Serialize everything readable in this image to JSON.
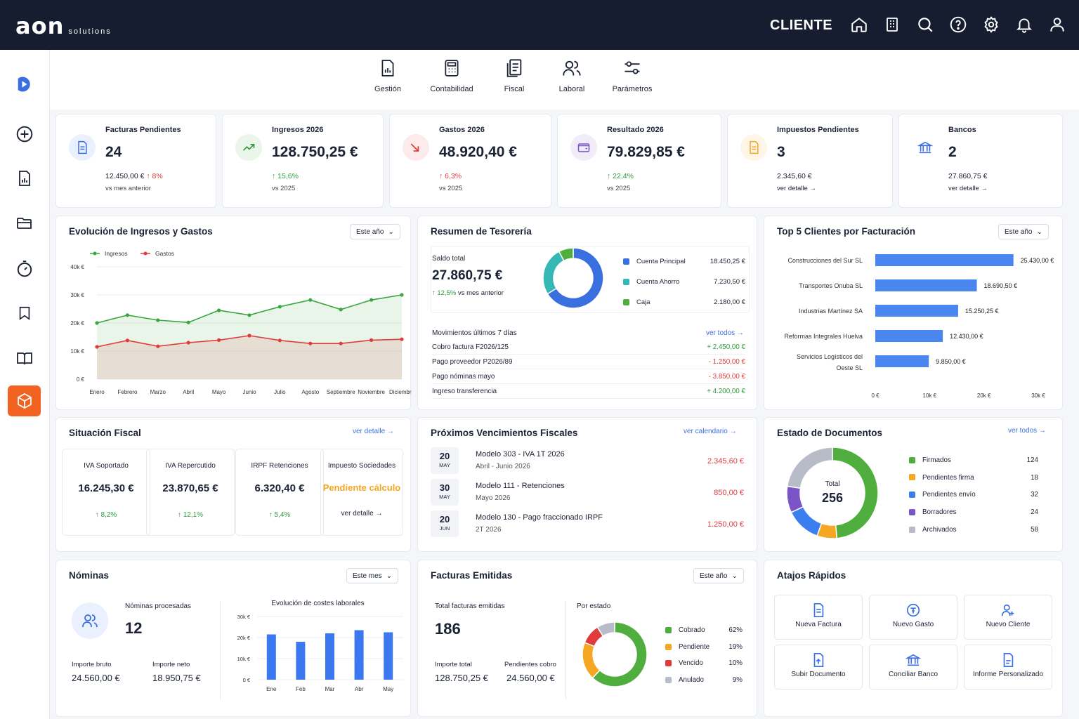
{
  "header": {
    "logo": "aon",
    "logo_sub": "solutions",
    "role": "CLIENTE",
    "icons": [
      "home-icon",
      "building-icon",
      "search-icon",
      "help-icon",
      "gear-icon",
      "bell-icon",
      "user-icon"
    ]
  },
  "sidebar": {
    "icons": [
      "brand-icon",
      "add-icon",
      "report-icon",
      "folder-icon",
      "timer-icon",
      "bookmark-icon",
      "book-icon",
      "box-icon"
    ]
  },
  "nav": [
    {
      "label": "Gestión",
      "icon": "report-icon"
    },
    {
      "label": "Contabilidad",
      "icon": "calculator-icon"
    },
    {
      "label": "Fiscal",
      "icon": "documents-icon"
    },
    {
      "label": "Laboral",
      "icon": "people-icon"
    },
    {
      "label": "Parámetros",
      "icon": "sliders-icon"
    }
  ],
  "kpis": [
    {
      "title": "Facturas Pendientes",
      "value": "24",
      "sub1": "12.450,00 €",
      "sub1b": "↑ 8%",
      "sub2": "vs mes anterior",
      "icon": "invoice-icon",
      "color": "#3a6fe0"
    },
    {
      "title": "Ingresos 2026",
      "value": "128.750,25 €",
      "sub1": "↑ 15,6%",
      "sub2": "vs 2025",
      "icon": "trend-up-icon",
      "color": "#2e9b3d"
    },
    {
      "title": "Gastos 2026",
      "value": "48.920,40 €",
      "sub1": "↑ 6,3%",
      "sub2": "vs 2025",
      "icon": "trend-down-icon",
      "color": "#e03c3c"
    },
    {
      "title": "Resultado 2026",
      "value": "79.829,85 €",
      "sub1": "↑ 22,4%",
      "sub2": "vs 2025",
      "icon": "wallet-icon",
      "color": "#7b55c7"
    },
    {
      "title": "Impuestos Pendientes",
      "value": "3",
      "sub1": "2.345,60 €",
      "sub2": "ver detalle →",
      "icon": "tax-doc-icon",
      "color": "#f5a623"
    },
    {
      "title": "Bancos",
      "value": "2",
      "sub1": "27.860,75 €",
      "sub2": "ver detalle →",
      "icon": "bank-icon",
      "color": "#3a6fe0"
    }
  ],
  "evolucion": {
    "title": "Evolución de Ingresos y Gastos",
    "dropdown": "Este año"
  },
  "chart_data": [
    {
      "type": "line",
      "title": "Evolución de Ingresos y Gastos",
      "categories": [
        "Enero",
        "Febrero",
        "Marzo",
        "Abril",
        "Mayo",
        "Junio",
        "Julio",
        "Agosto",
        "Septiembre",
        "Noviembre",
        "Diciembre"
      ],
      "yticks": [
        "0 €",
        "10k €",
        "20k €",
        "30k €",
        "40k €"
      ],
      "ylim": [
        0,
        40000
      ],
      "series": [
        {
          "name": "Ingresos",
          "color": "#3aa640",
          "values": [
            20000,
            22800,
            21000,
            20200,
            24500,
            22800,
            25800,
            28200,
            24800,
            28200,
            30000
          ]
        },
        {
          "name": "Gastos",
          "color": "#e03c3c",
          "values": [
            11500,
            13800,
            11700,
            13000,
            13900,
            15500,
            13800,
            12700,
            12700,
            13900,
            14200
          ]
        }
      ]
    },
    {
      "type": "bar",
      "title": "Top 5 Clientes por Facturación",
      "orientation": "horizontal",
      "categories": [
        "Construcciones del Sur SL",
        "Transportes Onuba SL",
        "Industrias Martínez SA",
        "Reformas Integrales Huelva",
        "Servicios Logísticos del Oeste SL"
      ],
      "values": [
        25430,
        18690.5,
        15250.25,
        12430,
        9850
      ],
      "labels": [
        "25.430,00 €",
        "18.690,50 €",
        "15.250,25 €",
        "12.430,00 €",
        "9.850,00 €"
      ],
      "xticks": [
        "0 €",
        "10k €",
        "20k €",
        "30k €"
      ],
      "xlim": [
        0,
        30000
      ]
    },
    {
      "type": "bar",
      "title": "Evolución de costes laborales",
      "categories": [
        "Ene",
        "Feb",
        "Mar",
        "Abr",
        "May"
      ],
      "values": [
        21500,
        18000,
        22000,
        23500,
        22500
      ],
      "yticks": [
        "0 €",
        "10k €",
        "20k €",
        "30k €"
      ],
      "ylim": [
        0,
        30000
      ]
    },
    {
      "type": "pie",
      "title": "Resumen de Tesorería",
      "values": [
        18450.25,
        7230.5,
        2180
      ]
    },
    {
      "type": "pie",
      "title": "Estado de Documentos",
      "values": [
        124,
        18,
        32,
        24,
        58
      ]
    },
    {
      "type": "pie",
      "title": "Por estado",
      "values": [
        62,
        19,
        10,
        9
      ]
    }
  ],
  "tesoreria": {
    "title": "Resumen de Tesorería",
    "saldo_label": "Saldo total",
    "saldo": "27.860,75 €",
    "growth": "↑ 12,5%",
    "growth_txt": "vs mes anterior",
    "accounts": [
      {
        "name": "Cuenta Principal",
        "value": "18.450,25 €",
        "color": "#3a6fe0"
      },
      {
        "name": "Cuenta Ahorro",
        "value": "7.230,50 €",
        "color": "#35b7b4"
      },
      {
        "name": "Caja",
        "value": "2.180,00 €",
        "color": "#4fae3e"
      }
    ],
    "mov_title": "Movimientos últimos 7 días",
    "mov_link": "ver todos →",
    "movs": [
      {
        "c": "Cobro factura F2026/125",
        "v": "+ 2.450,00 €",
        "pos": true
      },
      {
        "c": "Pago proveedor P2026/89",
        "v": "- 1.250,00 €",
        "pos": false
      },
      {
        "c": "Pago nóminas mayo",
        "v": "- 3.850,00 €",
        "pos": false
      },
      {
        "c": "Ingreso transferencia",
        "v": "+ 4.200,00 €",
        "pos": true
      }
    ]
  },
  "top5": {
    "title": "Top 5 Clientes por Facturación",
    "dropdown": "Este año"
  },
  "fiscal": {
    "title": "Situación Fiscal",
    "link": "ver detalle →",
    "boxes": [
      {
        "t": "IVA Soportado",
        "v": "16.245,30 €",
        "s": "↑ 8,2%"
      },
      {
        "t": "IVA Repercutido",
        "v": "23.870,65 €",
        "s": "↑ 12,1%"
      },
      {
        "t": "IRPF Retenciones",
        "v": "6.320,40 €",
        "s": "↑ 5,4%"
      },
      {
        "t": "Impuesto Sociedades",
        "v": "Pendiente cálculo",
        "s": "ver detalle →"
      }
    ]
  },
  "vencimientos": {
    "title": "Próximos Vencimientos Fiscales",
    "link": "ver calendario →",
    "items": [
      {
        "d": "20",
        "m": "MAY",
        "t": "Modelo 303 - IVA 1T 2026",
        "s": "Abril - Junio 2026",
        "v": "2.345,60 €"
      },
      {
        "d": "30",
        "m": "MAY",
        "t": "Modelo 111 - Retenciones",
        "s": "Mayo 2026",
        "v": "850,00 €"
      },
      {
        "d": "20",
        "m": "JUN",
        "t": "Modelo 130 - Pago fraccionado IRPF",
        "s": "2T 2026",
        "v": "1.250,00 €"
      }
    ]
  },
  "documentos": {
    "title": "Estado de Documentos",
    "link": "ver todos →",
    "total_label": "Total",
    "total": "256",
    "items": [
      {
        "n": "Firmados",
        "v": "124",
        "color": "#4fae3e"
      },
      {
        "n": "Pendientes firma",
        "v": "18",
        "color": "#f5a623"
      },
      {
        "n": "Pendientes envío",
        "v": "32",
        "color": "#3a7ef0"
      },
      {
        "n": "Borradores",
        "v": "24",
        "color": "#7b55c7"
      },
      {
        "n": "Archivados",
        "v": "58",
        "color": "#b8bcc8"
      }
    ]
  },
  "nominas": {
    "title": "Nóminas",
    "dropdown": "Este mes",
    "proc_label": "Nóminas procesadas",
    "proc": "12",
    "bruto_label": "Importe bruto",
    "bruto": "24.560,00 €",
    "neto_label": "Importe neto",
    "neto": "18.950,75 €",
    "chart_title": "Evolución de costes laborales"
  },
  "facturas": {
    "title": "Facturas Emitidas",
    "dropdown": "Este año",
    "total_label": "Total facturas emitidas",
    "total": "186",
    "importe_label": "Importe total",
    "importe": "128.750,25 €",
    "pend_label": "Pendientes cobro",
    "pend": "24.560,00 €",
    "estado_label": "Por estado",
    "items": [
      {
        "n": "Cobrado",
        "v": "62%",
        "color": "#4fae3e"
      },
      {
        "n": "Pendiente",
        "v": "19%",
        "color": "#f5a623"
      },
      {
        "n": "Vencido",
        "v": "10%",
        "color": "#e03c3c"
      },
      {
        "n": "Anulado",
        "v": "9%",
        "color": "#b8bcc8"
      }
    ]
  },
  "atajos": {
    "title": "Atajos Rápidos",
    "items": [
      {
        "l": "Nueva Factura",
        "icon": "invoice-icon"
      },
      {
        "l": "Nuevo Gasto",
        "icon": "expense-icon"
      },
      {
        "l": "Nuevo Cliente",
        "icon": "user-add-icon"
      },
      {
        "l": "Subir Documento",
        "icon": "upload-doc-icon"
      },
      {
        "l": "Conciliar Banco",
        "icon": "bank-icon"
      },
      {
        "l": "Informe Personalizado",
        "icon": "report-doc-icon"
      }
    ]
  }
}
